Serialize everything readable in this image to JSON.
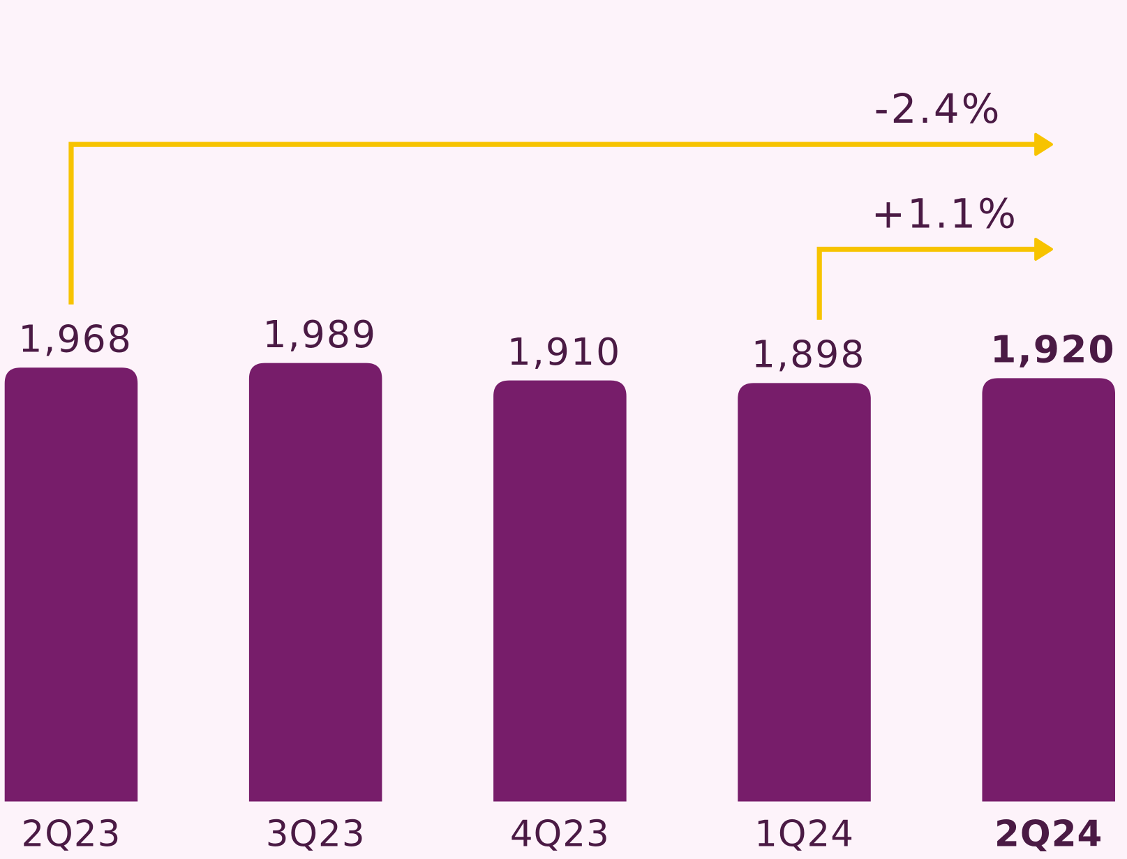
{
  "chart_data": {
    "type": "bar",
    "categories": [
      "2Q23",
      "3Q23",
      "4Q23",
      "1Q24",
      "2Q24"
    ],
    "values": [
      1968,
      1989,
      1910,
      1898,
      1920
    ],
    "value_labels": [
      "1,968",
      "1,989",
      "1,910",
      "1,898",
      "1,920"
    ],
    "color": "#771d6a",
    "highlight": 4,
    "ylim": [
      0,
      2000
    ],
    "annotations": [
      {
        "text": "-2.4%",
        "from": 0,
        "to": 4,
        "color": "#f7c300"
      },
      {
        "text": "+1.1%",
        "from": 3,
        "to": 4,
        "color": "#f7c300"
      }
    ]
  }
}
